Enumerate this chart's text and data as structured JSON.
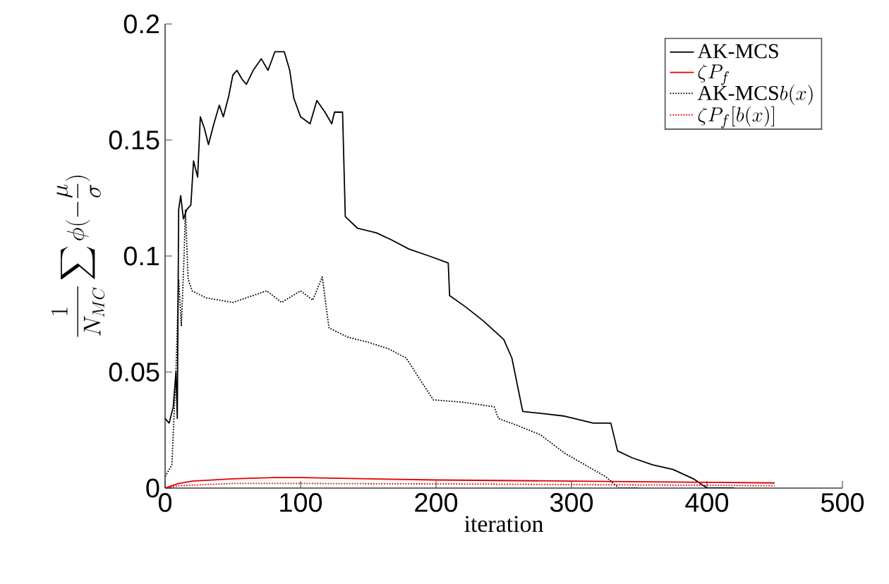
{
  "chart_data": {
    "type": "line",
    "xlabel": "iteration",
    "ylabel": "\\frac{1}{N_{MC}}\\sum\\phi(-\\frac{\\mu}{\\sigma})",
    "xlim": [
      0,
      500
    ],
    "ylim": [
      0,
      0.2
    ],
    "xticks": [
      0,
      100,
      200,
      300,
      400,
      500
    ],
    "yticks": [
      0,
      0.05,
      0.1,
      0.15,
      0.2
    ],
    "legend": "top right",
    "grid": false,
    "marker": "none",
    "series": [
      {
        "name": "\\text{AK-MCS}",
        "color": "#000000",
        "line_style": "solid",
        "x": [
          0,
          3,
          6,
          8,
          9,
          10,
          11.5,
          13.5,
          16,
          19,
          21,
          24,
          26,
          29,
          32,
          36,
          40,
          43,
          47,
          50,
          53,
          57,
          60,
          65,
          71,
          76,
          81,
          88,
          92,
          95,
          100,
          107,
          112,
          118,
          123,
          125,
          131,
          133,
          142,
          156,
          167,
          180,
          195,
          209,
          210,
          222,
          235,
          250,
          256,
          264,
          280,
          295,
          316,
          329,
          334,
          345,
          360,
          375,
          390,
          400,
          420
        ],
        "values": [
          0.03,
          0.028,
          0.035,
          0.05,
          0.03,
          0.12,
          0.126,
          0.116,
          0.12,
          0.122,
          0.141,
          0.134,
          0.16,
          0.155,
          0.148,
          0.157,
          0.165,
          0.16,
          0.169,
          0.178,
          0.18,
          0.176,
          0.174,
          0.18,
          0.185,
          0.18,
          0.188,
          0.188,
          0.18,
          0.168,
          0.16,
          0.157,
          0.167,
          0.162,
          0.157,
          0.162,
          0.162,
          0.117,
          0.112,
          0.11,
          0.107,
          0.103,
          0.1,
          0.097,
          0.083,
          0.078,
          0.072,
          0.064,
          0.056,
          0.033,
          0.032,
          0.031,
          0.028,
          0.028,
          0.016,
          0.013,
          0.01,
          0.008,
          0.004,
          0,
          0
        ]
      },
      {
        "name": "\\zeta P_f",
        "color": "#e00000",
        "line_style": "solid",
        "x": [
          0,
          10,
          20,
          50,
          80,
          100,
          150,
          200,
          300,
          400,
          450
        ],
        "values": [
          0,
          0.002,
          0.003,
          0.004,
          0.0045,
          0.0045,
          0.004,
          0.0035,
          0.003,
          0.0025,
          0.0022
        ]
      },
      {
        "name": "\\text{AK-MCS}b(x)",
        "color": "#000000",
        "line_style": "dotted",
        "x": [
          0,
          5,
          8,
          10,
          12,
          14,
          15,
          17,
          20,
          30,
          50,
          75,
          86,
          100,
          109,
          116,
          121,
          135,
          149,
          165,
          178,
          189,
          198,
          220,
          243,
          246,
          260,
          277,
          295,
          310,
          325,
          335,
          350
        ],
        "values": [
          0.005,
          0.01,
          0.05,
          0.09,
          0.07,
          0.1,
          0.12,
          0.09,
          0.085,
          0.082,
          0.08,
          0.085,
          0.08,
          0.085,
          0.081,
          0.091,
          0.069,
          0.065,
          0.063,
          0.06,
          0.056,
          0.046,
          0.038,
          0.037,
          0.035,
          0.03,
          0.027,
          0.023,
          0.015,
          0.01,
          0.005,
          0,
          0
        ]
      },
      {
        "name": "\\zeta P_f[b(x)]",
        "color": "#e00000",
        "line_style": "dotted",
        "x": [
          0,
          10,
          50,
          100,
          200,
          300,
          400,
          450
        ],
        "values": [
          0,
          0.001,
          0.002,
          0.002,
          0.0018,
          0.0015,
          0.0012,
          0.001
        ]
      }
    ]
  }
}
